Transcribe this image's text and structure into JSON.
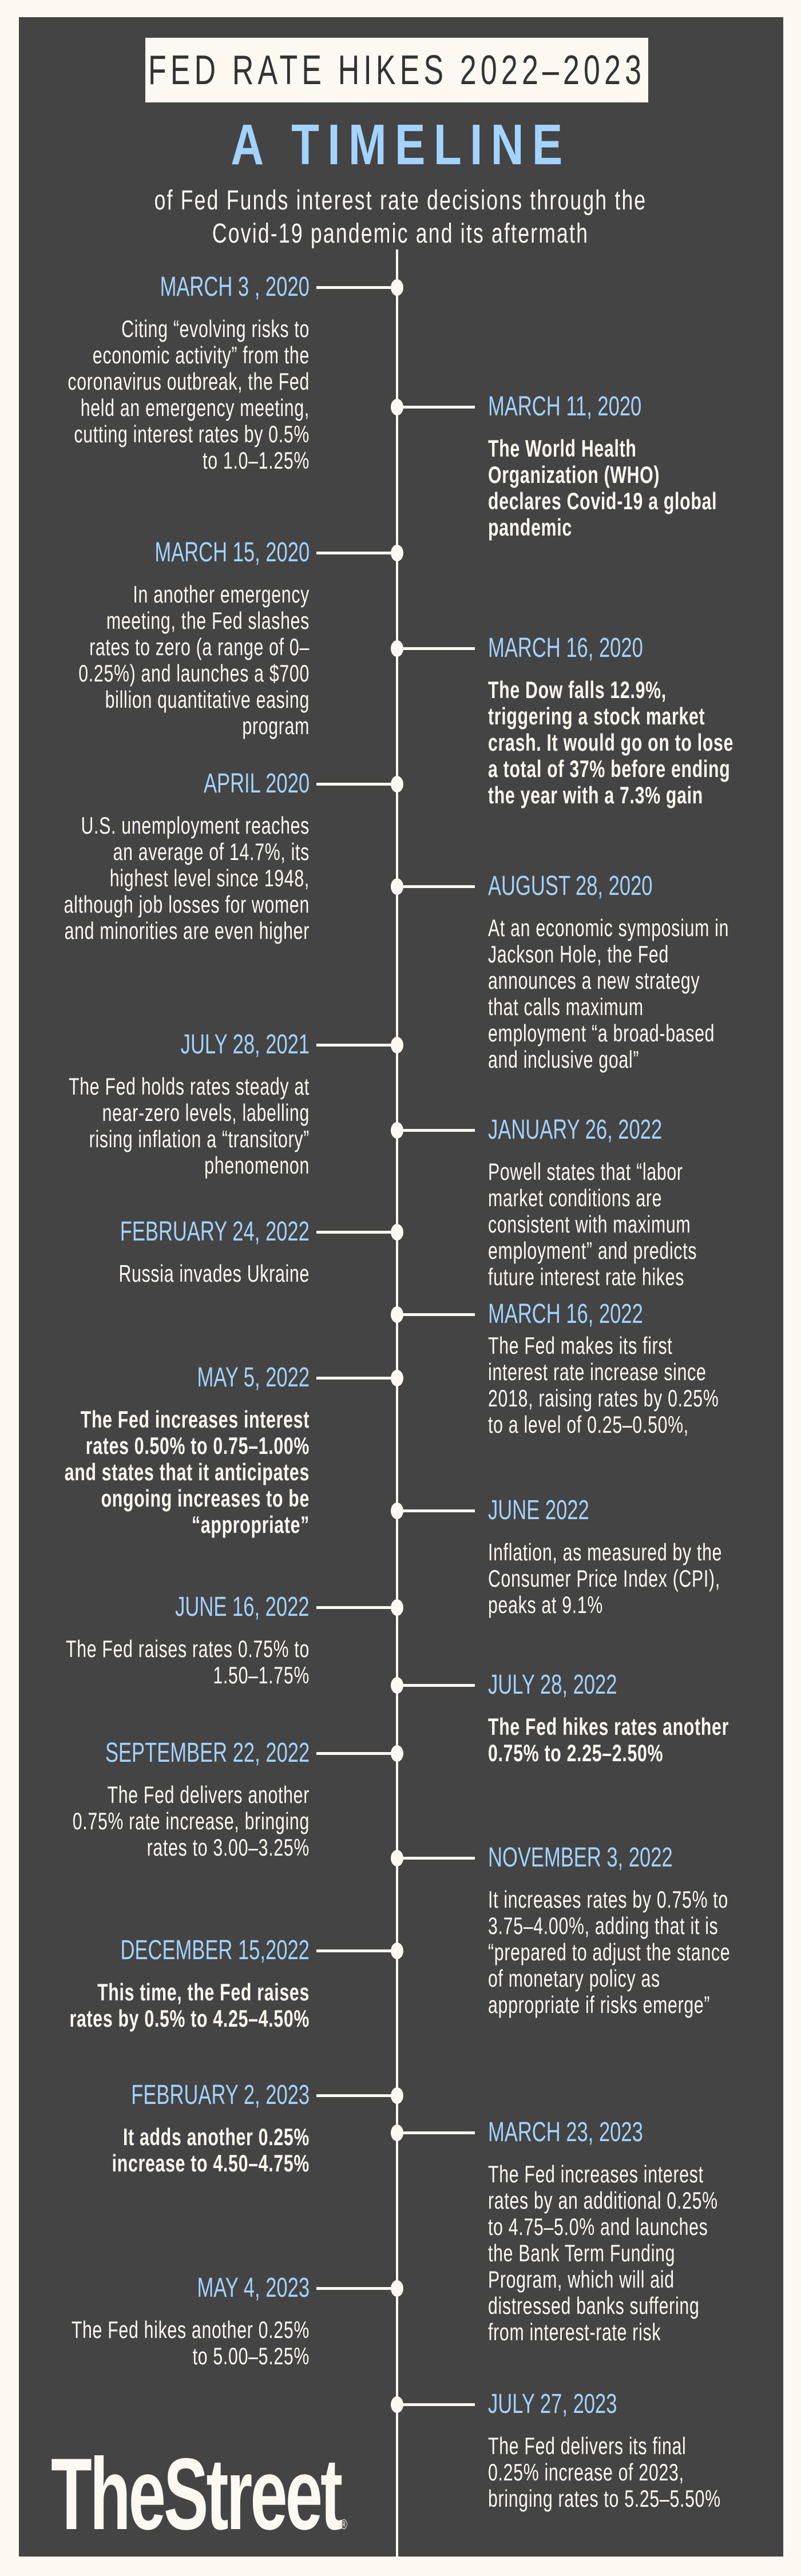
{
  "header": {
    "title": "FED RATE HIKES 2022–2023",
    "headline": "A TIMELINE",
    "subtitle_line1": "of Fed Funds interest rate decisions through the",
    "subtitle_line2": "Covid-19 pandemic and its aftermath"
  },
  "colors": {
    "background": "#fdf9f2",
    "panel": "#444444",
    "accent_blue": "#a3d3ff",
    "text": "#fdf9f2"
  },
  "events": [
    {
      "side": "left",
      "date": "MARCH 3 , 2020",
      "text": "Citing “evolving risks to economic activity” from the coronavirus outbreak, the Fed held an emergency meeting, cutting interest rates by 0.5% to 1.0–1.25%",
      "bold": false
    },
    {
      "side": "right",
      "date": "MARCH 11, 2020",
      "text": "The World Health Organization (WHO) declares Covid-19 a global pandemic",
      "bold": true
    },
    {
      "side": "left",
      "date": "MARCH 15, 2020",
      "text": "In another emergency meeting, the Fed slashes rates to zero (a range of 0–0.25%) and launches a $700 billion quantitative easing program",
      "bold": false
    },
    {
      "side": "right",
      "date": "MARCH 16, 2020",
      "text": "The Dow falls 12.9%, triggering a stock market crash. It would go on to lose a total of 37% before ending the year with a 7.3% gain",
      "bold": true
    },
    {
      "side": "left",
      "date": "APRIL 2020",
      "text": "U.S. unemployment reaches an average of 14.7%, its highest level since 1948, although job losses for women and minorities are even higher",
      "bold": false
    },
    {
      "side": "right",
      "date": "AUGUST 28, 2020",
      "text": "At an economic symposium in Jackson Hole, the Fed announces a new strategy that calls maximum employment “a broad-based and inclusive goal”",
      "bold": false
    },
    {
      "side": "left",
      "date": "JULY 28, 2021",
      "text": "The Fed holds rates steady at near-zero levels, labelling rising inflation a “transitory” phenomenon",
      "bold": false
    },
    {
      "side": "right",
      "date": "JANUARY 26, 2022",
      "text": "Powell states that “labor market conditions are consistent with maximum employment” and predicts future interest rate hikes",
      "bold": false
    },
    {
      "side": "left",
      "date": "FEBRUARY 24, 2022",
      "text": "Russia invades Ukraine",
      "bold": false
    },
    {
      "side": "right",
      "date": "MARCH 16, 2022",
      "text": "The Fed makes its first interest rate increase since 2018, raising rates by 0.25% to a level of 0.25–0.50%,",
      "bold": false
    },
    {
      "side": "left",
      "date": "MAY 5, 2022",
      "text": "The Fed increases interest rates 0.50% to 0.75–1.00% and states that it anticipates ongoing increases to be “appropriate”",
      "bold": true
    },
    {
      "side": "right",
      "date": "JUNE 2022",
      "text": "Inflation, as measured by the Consumer Price Index (CPI), peaks at 9.1%",
      "bold": false
    },
    {
      "side": "left",
      "date": "JUNE 16, 2022",
      "text": "The Fed raises rates 0.75% to 1.50–1.75%",
      "bold": false
    },
    {
      "side": "right",
      "date": "JULY 28, 2022",
      "text": "The Fed hikes rates another 0.75% to 2.25–2.50%",
      "bold": true
    },
    {
      "side": "left",
      "date": "SEPTEMBER 22,  2022",
      "text": "The Fed delivers another 0.75% rate increase, bringing rates to 3.00–3.25%",
      "bold": false
    },
    {
      "side": "right",
      "date": "NOVEMBER 3, 2022",
      "text": "It increases rates by 0.75% to 3.75–4.00%, adding that it is “prepared to adjust the stance of monetary policy as appropriate if risks emerge”",
      "bold": false
    },
    {
      "side": "left",
      "date": "DECEMBER 15,2022",
      "text": "This time, the Fed raises rates by 0.5% to 4.25–4.50%",
      "bold": true
    },
    {
      "side": "left",
      "date": "FEBRUARY 2, 2023",
      "text": "It adds another 0.25% increase to 4.50–4.75%",
      "bold": true
    },
    {
      "side": "right",
      "date": "MARCH 23, 2023",
      "text": "The Fed increases interest rates by an additional 0.25% to 4.75–5.0% and launches the Bank Term Funding Program, which will aid distressed banks suffering from interest-rate risk",
      "bold": false
    },
    {
      "side": "left",
      "date": "MAY 4, 2023",
      "text": "The Fed hikes another 0.25% to 5.00–5.25%",
      "bold": false
    },
    {
      "side": "right",
      "date": "JULY 27, 2023",
      "text": "The Fed delivers its final 0.25% increase of 2023, bringing rates to 5.25–5.50%",
      "bold": false
    }
  ],
  "logo": {
    "text": "TheStreet",
    "mark": "®"
  }
}
